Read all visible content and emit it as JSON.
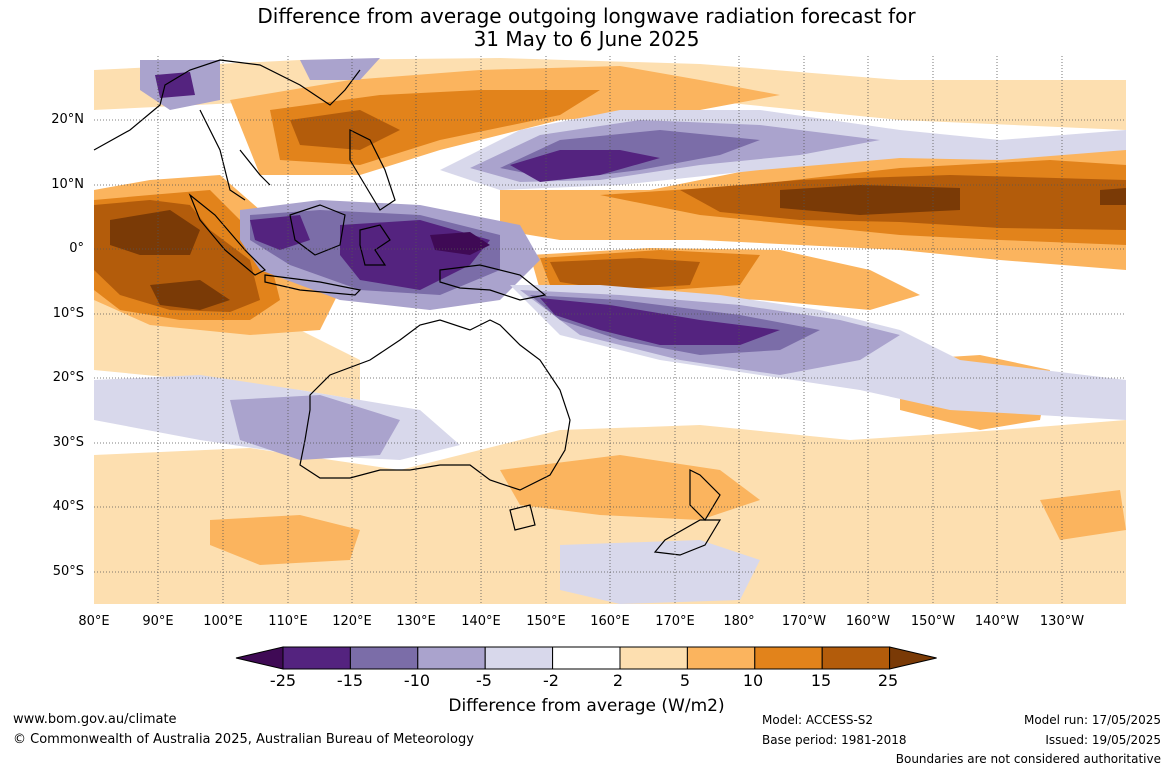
{
  "title_line1": "Difference from average outgoing longwave radiation forecast for",
  "title_line2": "31 May to 6 June 2025",
  "lat_labels": [
    "20°N",
    "10°N",
    "0°",
    "10°S",
    "20°S",
    "30°S",
    "40°S",
    "50°S"
  ],
  "lon_labels": [
    "80°E",
    "90°E",
    "100°E",
    "110°E",
    "120°E",
    "130°E",
    "140°E",
    "150°E",
    "160°E",
    "170°E",
    "180°",
    "170°W",
    "160°W",
    "150°W",
    "140°W",
    "130°W"
  ],
  "colorbar": {
    "title": "Difference from average (W/m2)",
    "ticks": [
      "-25",
      "-15",
      "-10",
      "-5",
      "-2",
      "2",
      "5",
      "10",
      "15",
      "25"
    ],
    "colors": [
      "#3f0a55",
      "#54237f",
      "#7b6da8",
      "#aaa3cd",
      "#d8d8eb",
      "#ffffff",
      "#fddfb0",
      "#fbb45e",
      "#e2831b",
      "#b35c0b",
      "#7a3a06"
    ]
  },
  "footer": {
    "website": "www.bom.gov.au/climate",
    "copyright": "© Commonwealth of Australia 2025, Australian Bureau of Meteorology",
    "model": "Model: ACCESS-S2",
    "base_period": "Base period: 1981-2018",
    "model_run": "Model run: 17/05/2025",
    "issued": "Issued: 19/05/2025",
    "disclaimer": "Boundaries are not considered authoritative"
  }
}
